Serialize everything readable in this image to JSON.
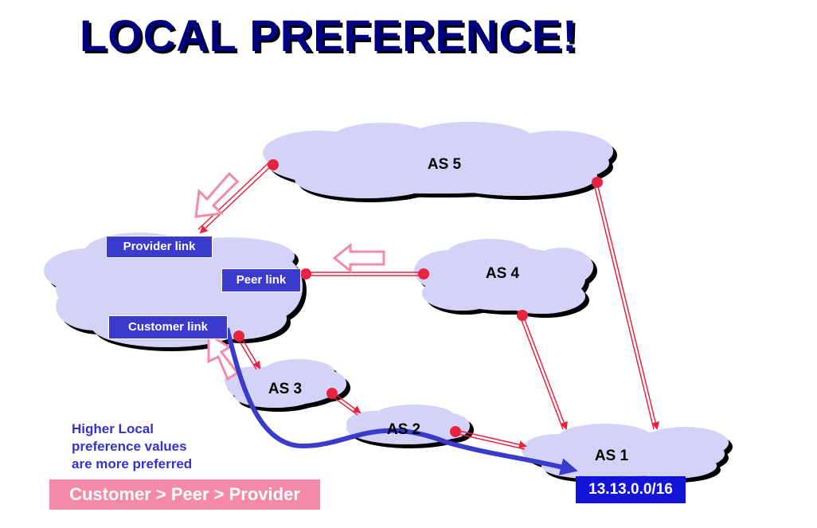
{
  "title": "LOCAL PREFERENCE!",
  "clouds": {
    "as5": "AS 5",
    "as4": "AS 4",
    "as3": "AS 3",
    "as2": "AS 2",
    "as1": "AS 1"
  },
  "links": {
    "provider": "Provider link",
    "peer": "Peer link",
    "customer": "Customer link"
  },
  "prefix": "13.13.0.0/16",
  "note_lines": [
    "Higher Local",
    "preference values",
    "are more preferred"
  ],
  "banner": "Customer > Peer > Provider",
  "colors": {
    "cloud_fill": "#d3d3f7",
    "arrow_red": "#e8233f",
    "hollow_arrow_pink": "#f38aa6",
    "path_blue": "#3a3acc",
    "title_navy": "#000080"
  }
}
